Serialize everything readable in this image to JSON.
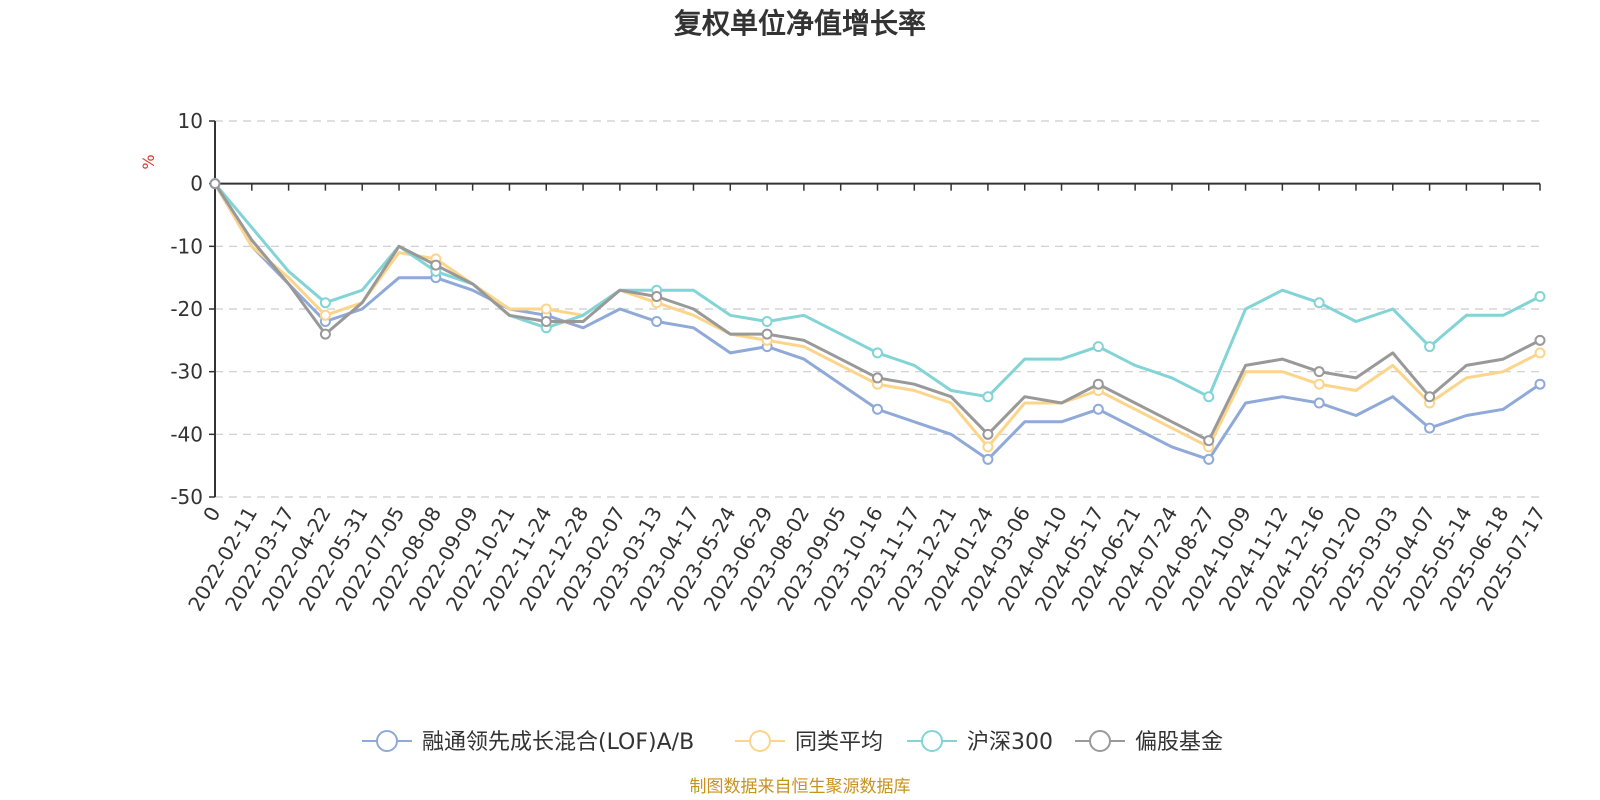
{
  "colors": {
    "axis": "#333333",
    "grid": "#cccccc",
    "source": "#c8921e",
    "unit": "#e0342a"
  },
  "chart_data": {
    "type": "line",
    "title": "复权单位净值增长率",
    "ylabel": "%",
    "ylim": [
      -50,
      10
    ],
    "yticks": [
      "10",
      "0",
      "-10",
      "-20",
      "-30",
      "-40",
      "-50"
    ],
    "grid": true,
    "legend_position": "bottom",
    "source": "制图数据来自恒生聚源数据库",
    "categories": [
      "0",
      "2022-02-11",
      "2022-03-17",
      "2022-04-22",
      "2022-05-31",
      "2022-07-05",
      "2022-08-08",
      "2022-09-09",
      "2022-10-21",
      "2022-11-24",
      "2022-12-28",
      "2023-02-07",
      "2023-03-13",
      "2023-04-17",
      "2023-05-24",
      "2023-06-29",
      "2023-08-02",
      "2023-09-05",
      "2023-10-16",
      "2023-11-17",
      "2023-12-21",
      "2024-01-24",
      "2024-03-06",
      "2024-04-10",
      "2024-05-17",
      "2024-06-21",
      "2024-07-24",
      "2024-08-27",
      "2024-10-09",
      "2024-11-12",
      "2024-12-16",
      "2025-01-20",
      "2025-03-03",
      "2025-04-07",
      "2025-05-14",
      "2025-06-18",
      "2025-07-17"
    ],
    "series": [
      {
        "name": "融通领先成长混合(LOF)A/B",
        "color": "#8fa9d8",
        "values": [
          0,
          -10,
          -16,
          -22,
          -20,
          -15,
          -15,
          -17,
          -20,
          -21,
          -23,
          -20,
          -22,
          -23,
          -27,
          -26,
          -28,
          -32,
          -36,
          -38,
          -40,
          -44,
          -38,
          -38,
          -36,
          -39,
          -42,
          -44,
          -35,
          -34,
          -35,
          -37,
          -34,
          -39,
          -37,
          -36,
          -32
        ]
      },
      {
        "name": "同类平均",
        "color": "#fcd58a",
        "values": [
          0,
          -10,
          -15,
          -21,
          -19,
          -11,
          -12,
          -16,
          -20,
          -20,
          -21,
          -17,
          -19,
          -21,
          -24,
          -25,
          -26,
          -29,
          -32,
          -33,
          -35,
          -42,
          -35,
          -35,
          -33,
          -36,
          -39,
          -42,
          -30,
          -30,
          -32,
          -33,
          -29,
          -35,
          -31,
          -30,
          -27
        ]
      },
      {
        "name": "沪深300",
        "color": "#82d4d6",
        "values": [
          0,
          -7,
          -14,
          -19,
          -17,
          -10,
          -14,
          -16,
          -21,
          -23,
          -21,
          -17,
          -17,
          -17,
          -21,
          -22,
          -21,
          -24,
          -27,
          -29,
          -33,
          -34,
          -28,
          -28,
          -26,
          -29,
          -31,
          -34,
          -20,
          -17,
          -19,
          -22,
          -20,
          -26,
          -21,
          -21,
          -18
        ]
      },
      {
        "name": "偏股基金",
        "color": "#999999",
        "values": [
          0,
          -9,
          -16,
          -24,
          -19,
          -10,
          -13,
          -16,
          -21,
          -22,
          -22,
          -17,
          -18,
          -20,
          -24,
          -24,
          -25,
          -28,
          -31,
          -32,
          -34,
          -40,
          -34,
          -35,
          -32,
          -35,
          -38,
          -41,
          -29,
          -28,
          -30,
          -31,
          -27,
          -34,
          -29,
          -28,
          -25
        ]
      }
    ]
  }
}
